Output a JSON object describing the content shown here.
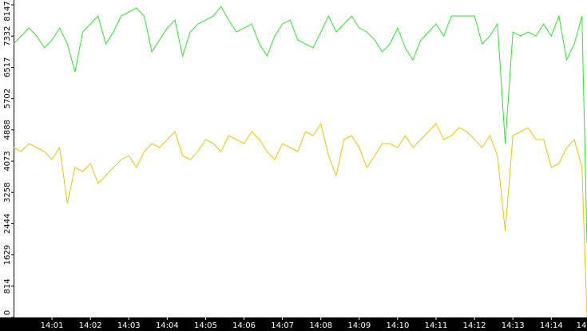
{
  "chart_data": {
    "type": "line",
    "x": [
      0,
      0.2,
      0.4,
      0.6,
      0.8,
      1.0,
      1.2,
      1.4,
      1.6,
      1.8,
      2.0,
      2.2,
      2.4,
      2.6,
      2.8,
      3.0,
      3.2,
      3.4,
      3.6,
      3.8,
      4.0,
      4.2,
      4.4,
      4.6,
      4.8,
      5.0,
      5.2,
      5.4,
      5.6,
      5.8,
      6.0,
      6.2,
      6.4,
      6.6,
      6.8,
      7.0,
      7.2,
      7.4,
      7.6,
      7.8,
      8.0,
      8.2,
      8.4,
      8.6,
      8.8,
      9.0,
      9.2,
      9.4,
      9.6,
      9.8,
      10.0,
      10.2,
      10.4,
      10.6,
      10.8,
      11.0,
      11.2,
      11.4,
      11.6,
      11.8,
      12.0,
      12.2,
      12.4,
      12.6,
      12.8,
      13.0,
      13.2,
      13.4,
      13.6,
      13.8,
      14.0,
      14.2,
      14.4,
      14.6,
      14.8,
      14.93
    ],
    "series": [
      {
        "color": "#2ee62e",
        "values": [
          7128,
          7335,
          7543,
          7335,
          7024,
          7231,
          7543,
          7128,
          6400,
          7439,
          7647,
          7855,
          7128,
          7439,
          7855,
          7959,
          8063,
          7855,
          6920,
          7231,
          7543,
          7751,
          6816,
          7439,
          7647,
          7751,
          7855,
          8104,
          7751,
          7439,
          7543,
          7647,
          7128,
          6816,
          7335,
          7647,
          7751,
          7231,
          7128,
          7024,
          7439,
          7855,
          7439,
          7647,
          7855,
          7543,
          7439,
          7231,
          6920,
          7128,
          7543,
          7024,
          6712,
          7231,
          7439,
          7647,
          7335,
          7855,
          7855,
          7855,
          7855,
          7128,
          7335,
          7647,
          4530,
          7439,
          7335,
          7439,
          7335,
          7647,
          7335,
          7855,
          6712,
          7128,
          7855,
          1933
        ]
      },
      {
        "color": "#f2c200",
        "values": [
          4426,
          4322,
          4530,
          4426,
          4322,
          4114,
          4426,
          2972,
          3907,
          3803,
          4011,
          3491,
          3699,
          3907,
          4114,
          4218,
          3907,
          4322,
          4530,
          4426,
          4634,
          4842,
          4218,
          4114,
          4322,
          4634,
          4530,
          4322,
          4738,
          4634,
          4530,
          4842,
          4634,
          4322,
          4114,
          4530,
          4426,
          4322,
          4842,
          4738,
          5050,
          4218,
          3699,
          4634,
          4738,
          4426,
          3907,
          4218,
          4530,
          4530,
          4426,
          4738,
          4426,
          4634,
          4842,
          5050,
          4634,
          4738,
          4946,
          4842,
          4634,
          4426,
          4738,
          4218,
          2244,
          4738,
          4842,
          4946,
          4634,
          4634,
          3907,
          4011,
          4426,
          4634,
          3907,
          0
        ]
      }
    ],
    "xlim": [
      0,
      14.93
    ],
    "xticks": [
      {
        "value": 1,
        "label": "14:01"
      },
      {
        "value": 2,
        "label": "14:02"
      },
      {
        "value": 3,
        "label": "14:03"
      },
      {
        "value": 4,
        "label": "14:04"
      },
      {
        "value": 5,
        "label": "14:05"
      },
      {
        "value": 6,
        "label": "14:06"
      },
      {
        "value": 7,
        "label": "14:07"
      },
      {
        "value": 8,
        "label": "14:08"
      },
      {
        "value": 9,
        "label": "14:09"
      },
      {
        "value": 10,
        "label": "14:10"
      },
      {
        "value": 11,
        "label": "14:11"
      },
      {
        "value": 12,
        "label": "14:12"
      },
      {
        "value": 13,
        "label": "14:13"
      },
      {
        "value": 14,
        "label": "14:14"
      },
      {
        "value": 15,
        "label": "14"
      }
    ],
    "ylim": [
      0,
      8147
    ],
    "yticks": [
      0,
      814,
      1629,
      2444,
      3258,
      4073,
      4888,
      5702,
      6517,
      7332,
      8147
    ]
  }
}
